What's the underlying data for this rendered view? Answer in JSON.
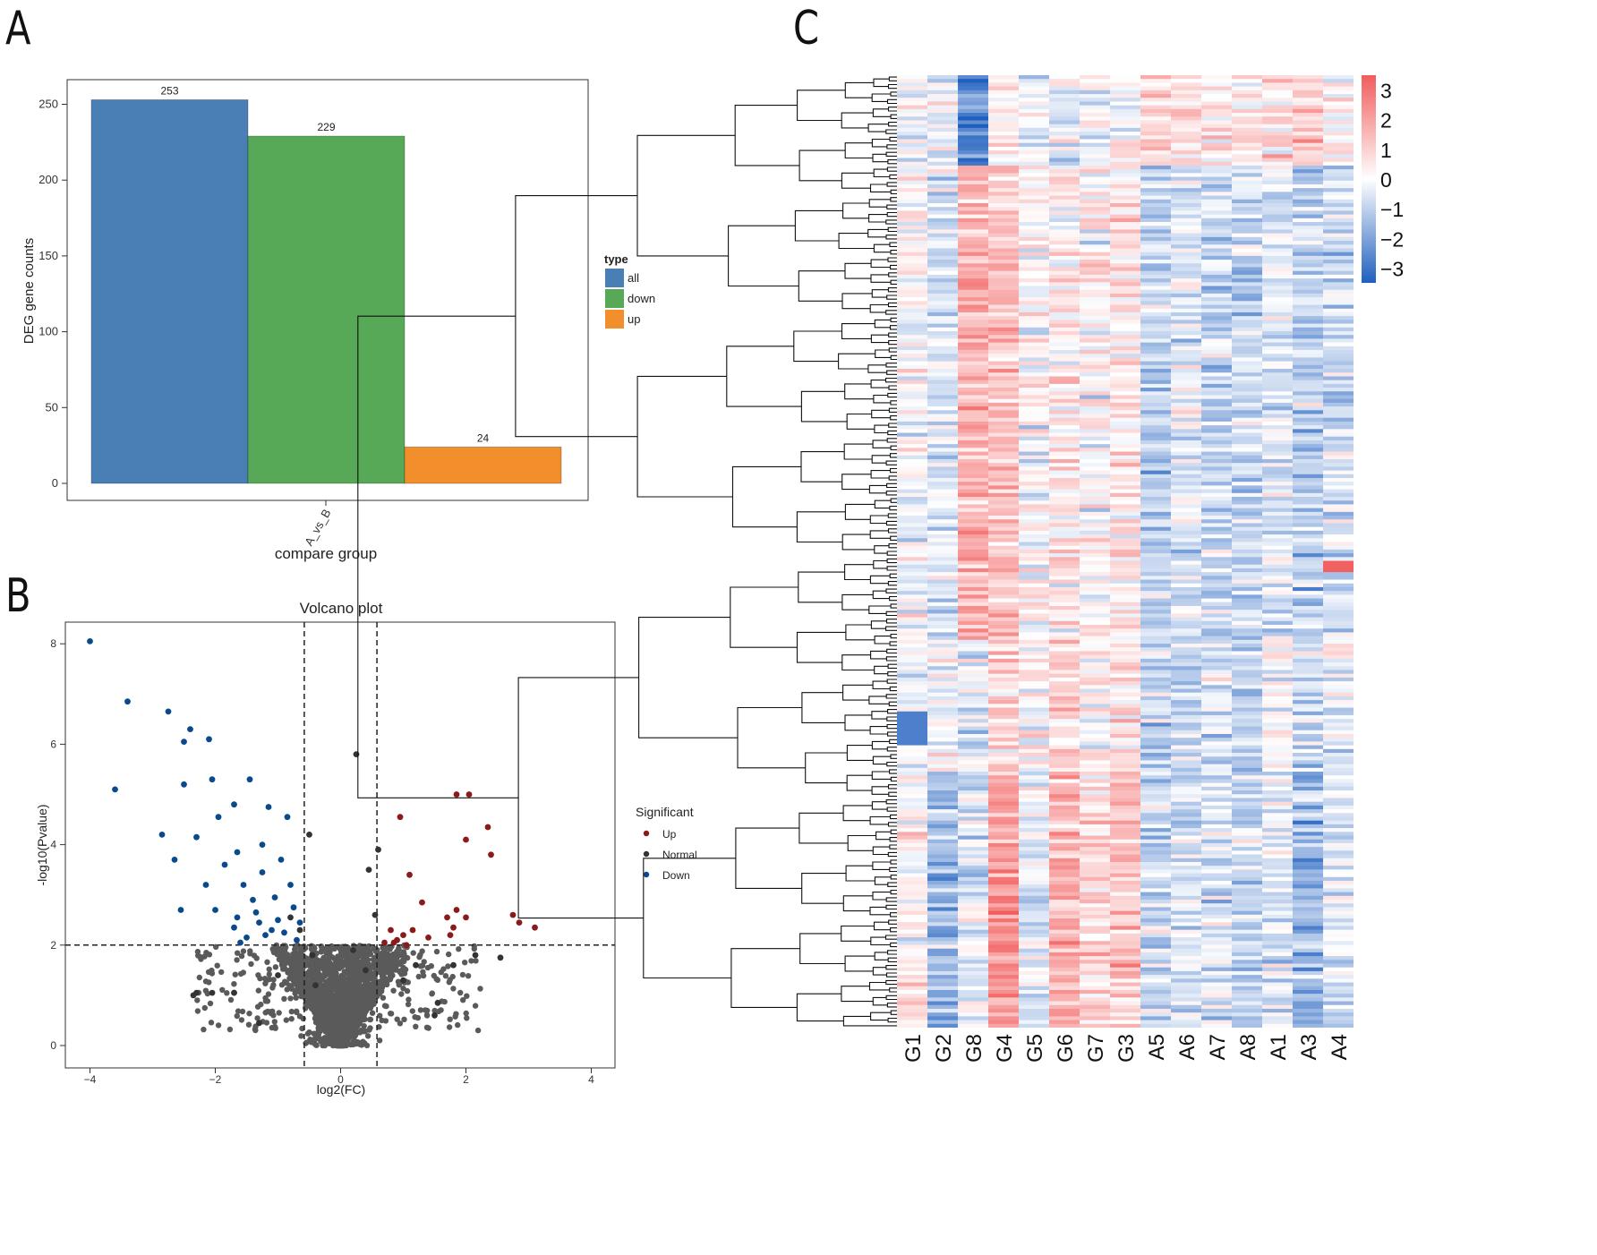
{
  "panels": {
    "a": "A",
    "b": "B",
    "c": "C"
  },
  "colors": {
    "all": "#4a7fb5",
    "down": "#57a957",
    "up": "#f28e2b",
    "volcano_up": "#8b1a1a",
    "volcano_normal": "#333333",
    "volcano_down": "#0a4a8c",
    "heat_low": "#1f5fbf",
    "heat_mid": "#ffffff",
    "heat_high": "#f25c5c"
  },
  "chart_data": [
    {
      "type": "bar",
      "panel": "A",
      "categories": [
        "A_vs_B"
      ],
      "series": [
        {
          "name": "all",
          "values": [
            253
          ]
        },
        {
          "name": "down",
          "values": [
            229
          ]
        },
        {
          "name": "up",
          "values": [
            24
          ]
        }
      ],
      "data_labels": [
        "253",
        "229",
        "24"
      ],
      "xlabel": "compare group",
      "ylabel": "DEG gene counts",
      "ylim": [
        0,
        262
      ],
      "yticks": [
        "0",
        "50",
        "100",
        "150",
        "200",
        "250"
      ],
      "legend_title": "type",
      "legend": [
        "all",
        "down",
        "up"
      ]
    },
    {
      "type": "scatter",
      "panel": "B",
      "title": "Volcano plot",
      "xlabel": "log2(FC)",
      "ylabel": "-log10(Pvalue)",
      "xlim": [
        -4.3,
        4.3
      ],
      "ylim": [
        -0.3,
        8.3
      ],
      "xticks": [
        "-4",
        "-2",
        "0",
        "2",
        "4"
      ],
      "yticks": [
        "0",
        "2",
        "4",
        "6",
        "8"
      ],
      "thresholds": {
        "log2fc": [
          -0.58,
          0.58
        ],
        "pvalue": 2
      },
      "legend_title": "Significant",
      "legend": [
        "Up",
        "Normal",
        "Down"
      ],
      "series": [
        {
          "name": "Up",
          "points": [
            [
              0.95,
              4.55
            ],
            [
              1.1,
              3.4
            ],
            [
              1.3,
              2.85
            ],
            [
              1.85,
              5.0
            ],
            [
              2.05,
              5.0
            ],
            [
              2.35,
              4.35
            ],
            [
              2.0,
              4.1
            ],
            [
              2.4,
              3.8
            ],
            [
              1.85,
              2.7
            ],
            [
              2.0,
              2.55
            ],
            [
              1.7,
              2.55
            ],
            [
              1.8,
              2.35
            ],
            [
              1.75,
              2.2
            ],
            [
              2.75,
              2.6
            ],
            [
              2.85,
              2.45
            ],
            [
              3.1,
              2.35
            ],
            [
              0.8,
              2.3
            ],
            [
              0.9,
              2.1
            ],
            [
              1.0,
              2.2
            ],
            [
              1.15,
              2.3
            ],
            [
              1.4,
              2.15
            ],
            [
              0.7,
              2.05
            ],
            [
              1.05,
              2.0
            ],
            [
              0.85,
              2.05
            ]
          ]
        },
        {
          "name": "Normal",
          "points": [
            [
              0.25,
              5.8
            ],
            [
              -0.5,
              4.2
            ],
            [
              -2.3,
              1.05
            ],
            [
              -2.35,
              1.0
            ],
            [
              -2.05,
              1.05
            ],
            [
              -1.7,
              1.05
            ],
            [
              -1.3,
              0.45
            ],
            [
              2.55,
              1.75
            ],
            [
              2.15,
              1.8
            ],
            [
              1.8,
              1.6
            ],
            [
              1.5,
              0.6
            ],
            [
              1.55,
              0.85
            ],
            [
              1.2,
              1.6
            ],
            [
              0.6,
              3.9
            ],
            [
              0.45,
              3.5
            ],
            [
              0.55,
              2.6
            ],
            [
              -0.8,
              2.55
            ],
            [
              -0.65,
              2.3
            ],
            [
              -0.45,
              1.8
            ],
            [
              0.4,
              1.5
            ],
            [
              -0.4,
              1.2
            ],
            [
              0.2,
              1.9
            ],
            [
              -1.0,
              1.4
            ],
            [
              1.0,
              1.3
            ]
          ]
        },
        {
          "name": "Down",
          "points": [
            [
              -4.0,
              8.05
            ],
            [
              -3.4,
              6.85
            ],
            [
              -2.75,
              6.65
            ],
            [
              -2.4,
              6.3
            ],
            [
              -2.1,
              6.1
            ],
            [
              -2.5,
              6.05
            ],
            [
              -3.6,
              5.1
            ],
            [
              -2.5,
              5.2
            ],
            [
              -2.05,
              5.3
            ],
            [
              -1.95,
              4.55
            ],
            [
              -1.45,
              5.3
            ],
            [
              -2.85,
              4.2
            ],
            [
              -2.65,
              3.7
            ],
            [
              -2.3,
              4.15
            ],
            [
              -1.7,
              4.8
            ],
            [
              -1.15,
              4.75
            ],
            [
              -0.85,
              4.55
            ],
            [
              -1.25,
              4.0
            ],
            [
              -1.65,
              3.85
            ],
            [
              -2.15,
              3.2
            ],
            [
              -1.85,
              3.6
            ],
            [
              -2.55,
              2.7
            ],
            [
              -2.0,
              2.7
            ],
            [
              -1.55,
              3.2
            ],
            [
              -1.25,
              3.45
            ],
            [
              -0.95,
              3.7
            ],
            [
              -1.4,
              2.9
            ],
            [
              -1.05,
              2.95
            ],
            [
              -0.8,
              3.2
            ],
            [
              -1.65,
              2.55
            ],
            [
              -1.3,
              2.45
            ],
            [
              -1.0,
              2.5
            ],
            [
              -0.75,
              2.75
            ],
            [
              -1.5,
              2.15
            ],
            [
              -1.2,
              2.2
            ],
            [
              -0.9,
              2.25
            ],
            [
              -0.65,
              2.45
            ],
            [
              -1.7,
              2.35
            ],
            [
              -1.6,
              2.05
            ],
            [
              -1.35,
              2.65
            ],
            [
              -1.1,
              2.3
            ],
            [
              -0.7,
              2.1
            ]
          ]
        }
      ]
    },
    {
      "type": "heatmap",
      "panel": "C",
      "columns": [
        "G1",
        "G2",
        "G8",
        "G4",
        "G5",
        "G6",
        "G7",
        "G3",
        "A5",
        "A6",
        "A7",
        "A8",
        "A1",
        "A3",
        "A4"
      ],
      "n_rows": 253,
      "value_range": [
        -3.5,
        3.5
      ],
      "colorbar_ticks": [
        "3",
        "2",
        "1",
        "0",
        "-1",
        "-2",
        "-3"
      ],
      "column_mean_z": [
        0.0,
        -0.9,
        0.8,
        1.7,
        -0.2,
        1.2,
        0.4,
        0.9,
        -0.9,
        -0.5,
        -0.7,
        -0.8,
        -0.2,
        -1.0,
        -0.5
      ]
    }
  ]
}
